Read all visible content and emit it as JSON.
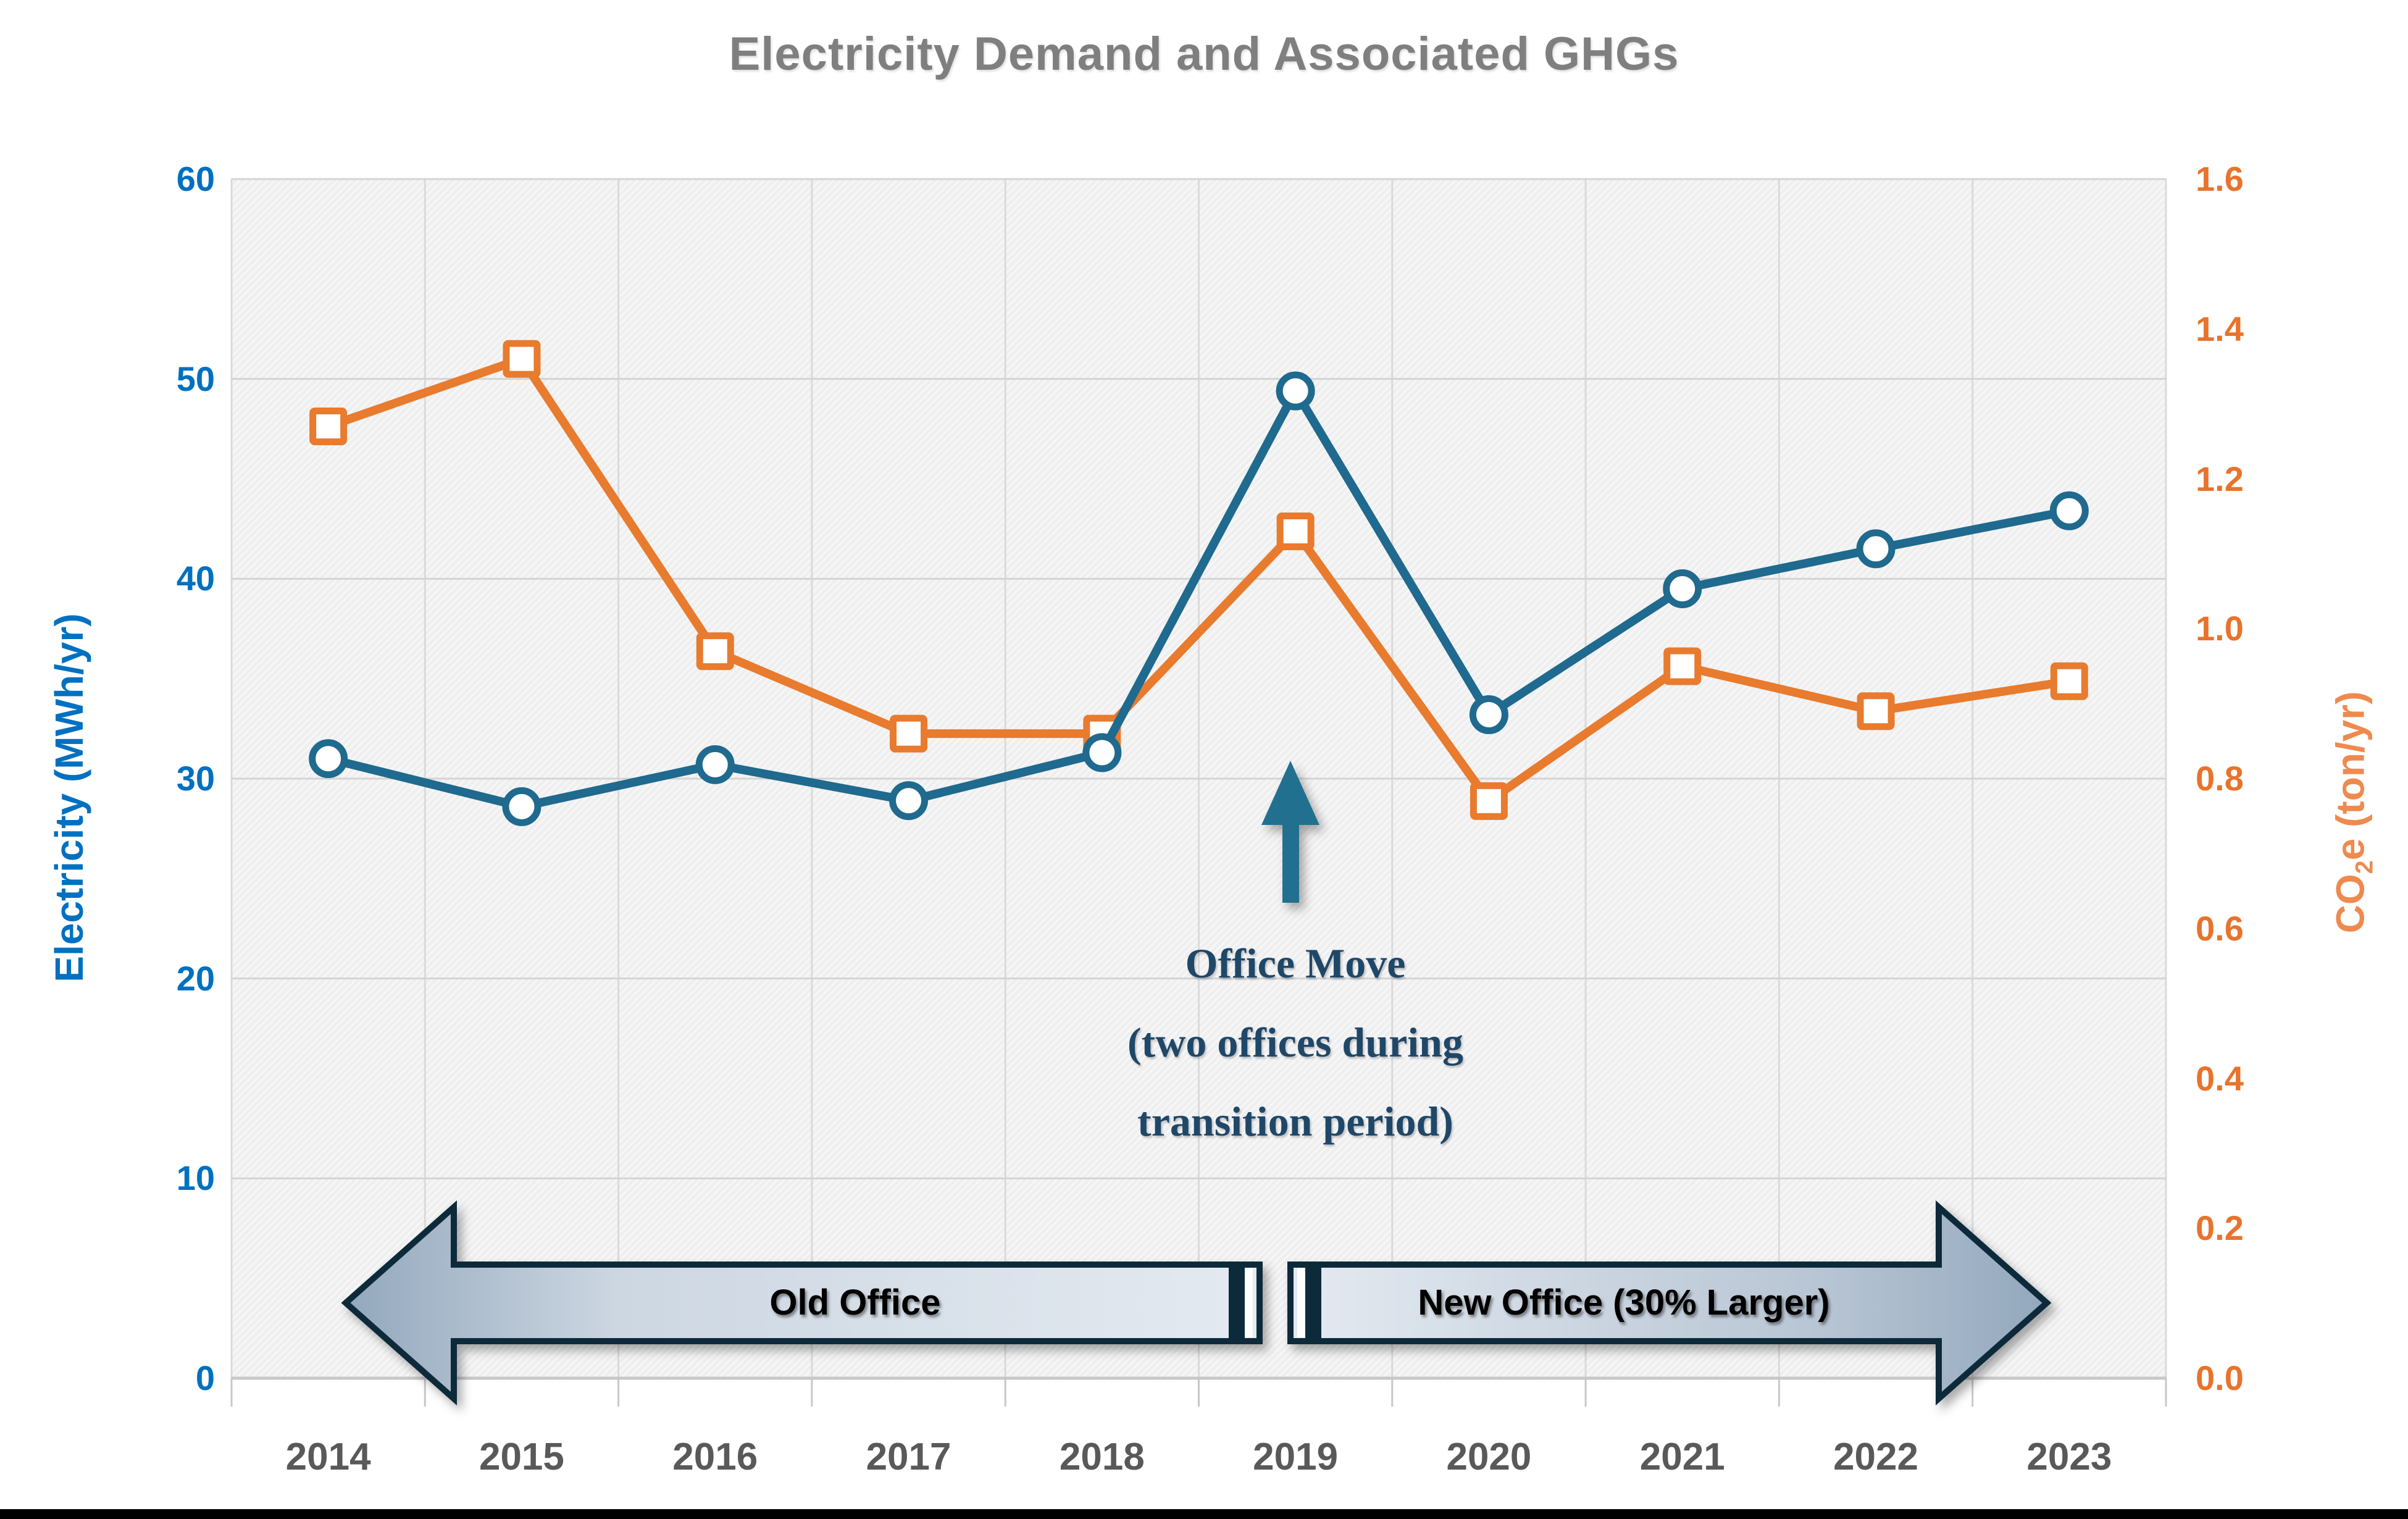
{
  "title": {
    "text": "Electricity Demand and Associated GHGs",
    "color": "#7f7f7f"
  },
  "chart_data": {
    "type": "line",
    "categories": [
      "2014",
      "2015",
      "2016",
      "2017",
      "2018",
      "2019",
      "2020",
      "2021",
      "2022",
      "2023"
    ],
    "series": [
      {
        "name": "CO2e (ton/yr)",
        "axis": "right",
        "marker": "square",
        "color": "#e87b2e",
        "values": [
          1.27,
          1.36,
          0.97,
          0.86,
          0.86,
          1.13,
          0.77,
          0.95,
          0.89,
          0.93
        ]
      },
      {
        "name": "Electricity (MWh/yr)",
        "axis": "left",
        "marker": "circle",
        "color": "#1f6a8e",
        "values": [
          31.0,
          28.6,
          30.7,
          28.9,
          31.3,
          49.4,
          33.2,
          39.5,
          41.5,
          43.4
        ]
      }
    ],
    "left_axis": {
      "label": "Electricity (MWh/yr)",
      "color": "#0070c0",
      "min": 0,
      "max": 60,
      "ticks": [
        60,
        50,
        40,
        30,
        20,
        10,
        0
      ]
    },
    "right_axis": {
      "label_co": "CO",
      "label_sub": "2",
      "label_rest": "e (ton/yr)",
      "tick_color": "#e8732c",
      "title_color": "#ef8a4f",
      "min": 0.0,
      "max": 1.6,
      "ticks": [
        "1.6",
        "1.4",
        "1.2",
        "1.0",
        "0.8",
        "0.6",
        "0.4",
        "0.2",
        "0.0"
      ]
    },
    "x_axis": {
      "color": "#595959"
    },
    "grid": true,
    "legend": "none"
  },
  "annotation": {
    "line1": "Office Move",
    "line2": "(two offices during",
    "line3": "transition period)",
    "color": "#1f4768",
    "arrow_color": "#24708f",
    "target_year": "2019"
  },
  "banner": {
    "left_label": "Old Office",
    "right_label": "New Office (30% Larger)",
    "outline_color": "#112b3b",
    "fill_light": "#e4eaf1",
    "fill_dark": "#93a8bd",
    "text_color": "#000000"
  },
  "page": {
    "footer_bar_color": "#000000"
  }
}
